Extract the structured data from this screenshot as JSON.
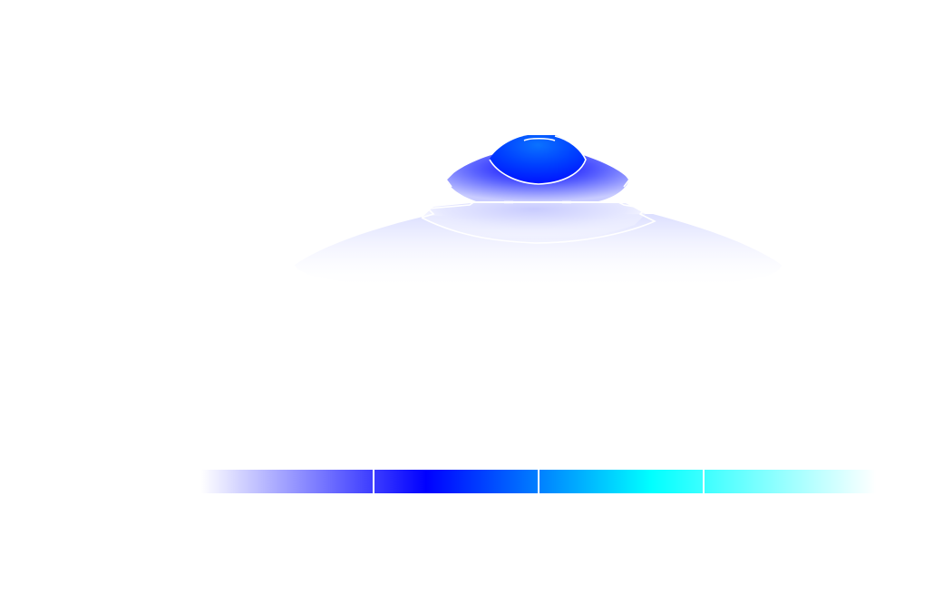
{
  "chart_data": {
    "type": "heatmap",
    "title": "",
    "xlabel": "",
    "ylabel": "",
    "colormap": {
      "name": "white-blue-cyan-white",
      "stops": [
        "#ffffff",
        "#0000ff",
        "#00ffff",
        "#ffffff"
      ]
    },
    "contour_lines": {
      "color": "#ffffff",
      "count": 5
    },
    "colorbar": {
      "orientation": "horizontal",
      "segments": 4,
      "tick_labels": []
    },
    "plume": {
      "shape": "stacked concentric lobes",
      "peak_color": "#0050ff",
      "outer_color": "#eeeeff"
    },
    "grid": false,
    "legend": "none"
  }
}
